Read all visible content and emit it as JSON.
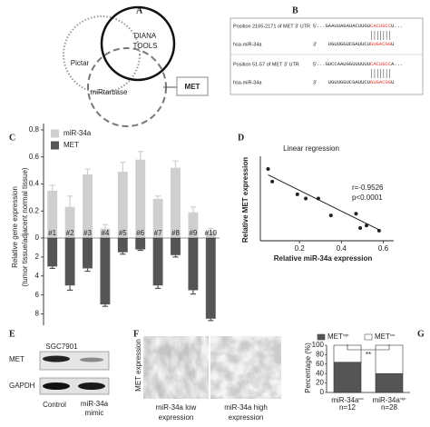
{
  "panel_labels": [
    "A",
    "B",
    "C",
    "D",
    "E",
    "F",
    "G"
  ],
  "venn": {
    "sets": [
      [
        "Pictar"
      ],
      [
        "DIANA",
        "TOOLS"
      ],
      [
        "miRtarbase"
      ]
    ],
    "target": "MET"
  },
  "alignment": {
    "rows": [
      {
        "label": "Position 2165-2171 of MET 3' UTR",
        "end": "5'",
        "seq": "...GAAUUAGAUACUUGU",
        "match": "CACUGCC",
        "tail": "U..."
      },
      {
        "label": "hsa-miR-34a",
        "end": "3'",
        "seq": "UGUUGGUCGAUUCU",
        "match": "GUGACGG",
        "tail": "U"
      },
      {
        "label": "Position 51-57 of MET 3' UTR",
        "end": "5'",
        "seq": "...GUCCAAUGGUUUUUU",
        "match": "CACUGCC",
        "tail": "A..."
      },
      {
        "label": "hsa-miR-34a",
        "end": "3'",
        "seq": "UGUUGGUCGAUUCU",
        "match": "GUGACGG",
        "tail": "U"
      }
    ]
  },
  "chart_data": [
    {
      "type": "bar",
      "ylabel": [
        "Relative gene expression",
        "(tumor tissue/adjacent normal tissue)"
      ],
      "categories": [
        "#1",
        "#2",
        "#3",
        "#4",
        "#5",
        "#6",
        "#7",
        "#8",
        "#9",
        "#10"
      ],
      "series": [
        {
          "name": "miR-34a",
          "color": "#cfcfcf",
          "values": [
            0.35,
            0.23,
            0.47,
            0.07,
            0.49,
            0.58,
            0.29,
            0.52,
            0.19,
            0.05
          ],
          "errors": [
            0.04,
            0.08,
            0.04,
            0.03,
            0.07,
            0.06,
            0.02,
            0.05,
            0.04,
            0.02
          ]
        }
      ],
      "ylim": [
        0,
        0.82
      ],
      "yticks": [
        0,
        0.2,
        0.4,
        0.6,
        0.8
      ]
    },
    {
      "type": "bar",
      "series": [
        {
          "name": "MET",
          "color": "#555555",
          "values": [
            3.0,
            5.0,
            3.2,
            7.0,
            1.5,
            1.2,
            5.0,
            1.8,
            5.5,
            8.5
          ],
          "errors": [
            0.2,
            0.5,
            0.3,
            0.2,
            0.2,
            0.1,
            0.3,
            0.2,
            0.4,
            0.2
          ]
        }
      ],
      "ylim": [
        9,
        0
      ],
      "yticks": [
        2,
        4,
        6,
        8
      ]
    },
    {
      "type": "scatter",
      "title": "Linear regression",
      "annotations": [
        "r=-0.9526",
        "p<0.0001"
      ],
      "xlabel": "Relative miR-34a expression",
      "ylabel": "Relative MET expression",
      "x": [
        0.05,
        0.07,
        0.19,
        0.23,
        0.29,
        0.35,
        0.47,
        0.49,
        0.52,
        0.58
      ],
      "values": [
        8.5,
        7.0,
        5.5,
        5.0,
        5.0,
        3.0,
        3.2,
        1.5,
        1.8,
        1.2
      ],
      "color": "#222222",
      "fit": {
        "x": [
          0.05,
          0.58
        ],
        "values": [
          7.8,
          1.3
        ]
      },
      "xlim": [
        0,
        0.65
      ],
      "xticks": [
        0.2,
        0.4,
        0.6
      ],
      "ylim": [
        0,
        10
      ]
    },
    {
      "type": "stacked_bar",
      "ylabel": "Percentage (%)",
      "annotation": "**",
      "categories": [
        {
          "label": "miR-34a",
          "sup": "low",
          "n": "n=12"
        },
        {
          "label": "miR-34a",
          "sup": "high",
          "n": "n=28"
        }
      ],
      "series": [
        {
          "name": "MET",
          "sup": "high",
          "color": "#555555",
          "values": [
            64,
            40
          ]
        },
        {
          "name": "MET",
          "sup": "low",
          "color": "#ffffff",
          "values": [
            36,
            60
          ]
        }
      ],
      "ylim": [
        0,
        100
      ],
      "yticks": [
        0,
        20,
        40,
        60,
        80,
        100
      ]
    }
  ],
  "blot": {
    "cell_line": "SGC7901",
    "proteins": [
      "MET",
      "GAPDH"
    ],
    "lanes": [
      [
        "Control"
      ],
      [
        "miR-34a",
        "mimic"
      ]
    ]
  },
  "histology": {
    "ylabel": "MET expression",
    "captions": [
      [
        "miR-34a low",
        "expression"
      ],
      [
        "miR-34a high",
        "expression"
      ]
    ]
  }
}
